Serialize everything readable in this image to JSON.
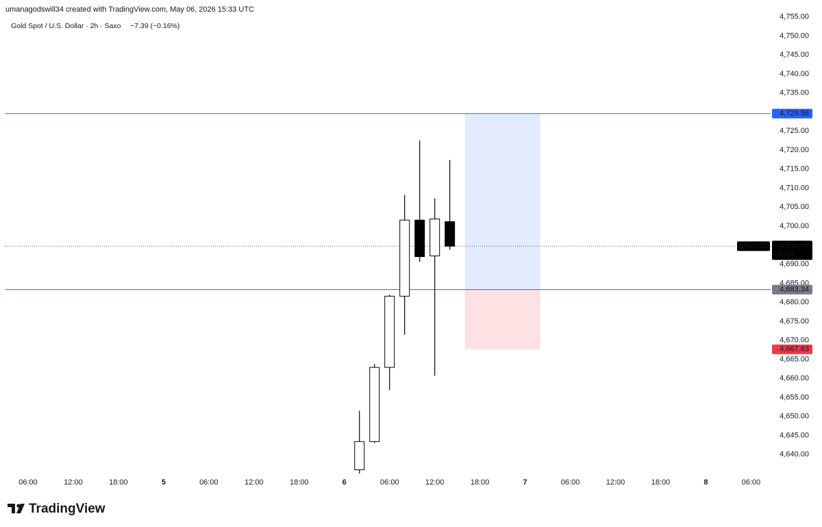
{
  "header": {
    "credit": "umanagodswill34 created with TradingView.com, May 06, 2026 15:33 UTC",
    "symbol": "Gold Spot / U.S. Dollar · 2h · Saxo",
    "change": "−7.39 (−0.16%)"
  },
  "chart_data": {
    "type": "candlestick",
    "x": [
      50,
      52,
      54,
      56,
      58,
      60,
      62
    ],
    "open": [
      4636,
      4643.4,
      4662.9,
      4681.6,
      4701.6,
      4692.2,
      4701.2
    ],
    "high": [
      4651.5,
      4663.8,
      4682,
      4708.2,
      4722.6,
      4707.3,
      4717.4
    ],
    "low": [
      4634,
      4643,
      4656.9,
      4671.5,
      4690.6,
      4660.7,
      4693.8
    ],
    "close": [
      4643.4,
      4662.9,
      4681.6,
      4701.6,
      4692.0,
      4701.9,
      4694.75
    ],
    "up_color": "#ffffff",
    "down_color": "#000000",
    "outline_color": "#000000",
    "ylim": [
      4635,
      4758
    ],
    "yticks": [
      {
        "value": 4640,
        "label": "4,640.00"
      },
      {
        "value": 4645,
        "label": "4,645.00"
      },
      {
        "value": 4650,
        "label": "4,650.00"
      },
      {
        "value": 4655,
        "label": "4,655.00"
      },
      {
        "value": 4660,
        "label": "4,660.00"
      },
      {
        "value": 4665,
        "label": "4,665.00"
      },
      {
        "value": 4670,
        "label": "4,670.00"
      },
      {
        "value": 4675,
        "label": "4,675.00"
      },
      {
        "value": 4680,
        "label": "4,680.00"
      },
      {
        "value": 4685,
        "label": "4,685.00"
      },
      {
        "value": 4690,
        "label": "4,690.00"
      },
      {
        "value": 4695,
        "label": "4,695.00"
      },
      {
        "value": 4700,
        "label": "4,700.00"
      },
      {
        "value": 4705,
        "label": "4,705.00"
      },
      {
        "value": 4710,
        "label": "4,710.00"
      },
      {
        "value": 4715,
        "label": "4,715.00"
      },
      {
        "value": 4720,
        "label": "4,720.00"
      },
      {
        "value": 4725,
        "label": "4,725.00"
      },
      {
        "value": 4730,
        "label": "4,730.00"
      },
      {
        "value": 4735,
        "label": "4,735.00"
      },
      {
        "value": 4740,
        "label": "4,740.00"
      },
      {
        "value": 4745,
        "label": "4,745.00"
      },
      {
        "value": 4750,
        "label": "4,750.00"
      },
      {
        "value": 4755,
        "label": "4,755.00"
      }
    ],
    "xlim": [
      3,
      104.6
    ],
    "xticks": [
      {
        "value": 6,
        "label": "06:00"
      },
      {
        "value": 12,
        "label": "12:00"
      },
      {
        "value": 18,
        "label": "18:00"
      },
      {
        "value": 24,
        "label": "5"
      },
      {
        "value": 30,
        "label": "06:00"
      },
      {
        "value": 36,
        "label": "12:00"
      },
      {
        "value": 42,
        "label": "18:00"
      },
      {
        "value": 48,
        "label": "6"
      },
      {
        "value": 54,
        "label": "06:00"
      },
      {
        "value": 60,
        "label": "12:00"
      },
      {
        "value": 66,
        "label": "18:00"
      },
      {
        "value": 72,
        "label": "7"
      },
      {
        "value": 78,
        "label": "06:00"
      },
      {
        "value": 84,
        "label": "12:00"
      },
      {
        "value": 90,
        "label": "18:00"
      },
      {
        "value": 96,
        "label": "8"
      },
      {
        "value": 102,
        "label": "06:00"
      }
    ],
    "position": {
      "x": [
        64,
        74
      ],
      "target": {
        "value": 4729.58,
        "label": "4,729.58"
      },
      "entry": {
        "value": 4683.34,
        "label": "4,683.34"
      },
      "stop": {
        "value": 4667.63,
        "label": "4,667.63"
      },
      "target_color": "#2962ff",
      "entry_color": "#787b86",
      "stop_color": "#f23645"
    },
    "last_price": {
      "value": 4694.75,
      "label": "4,694.75",
      "symbol": "XAUUSD",
      "countdown": "26:06"
    }
  },
  "footer": {
    "logo": "TradingView"
  }
}
